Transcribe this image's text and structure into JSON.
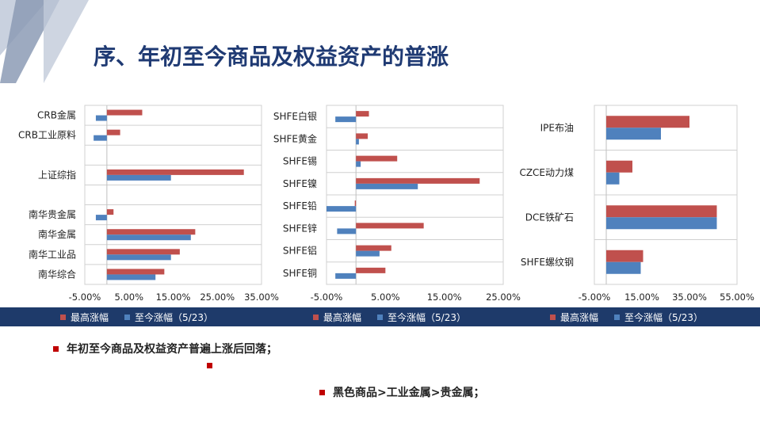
{
  "title": "序、年初至今商品及权益资产的普涨",
  "colors": {
    "max_gain": "#c0504d",
    "ytd": "#4f81bd",
    "band": "#1e3a6a",
    "title": "#1f3a73",
    "bullet": "#c00000"
  },
  "legends": [
    {
      "max_label": "最高涨幅",
      "ytd_label": "至今涨幅（5/23）"
    },
    {
      "max_label": "最高涨幅",
      "ytd_label": "至今涨幅（5/23）"
    },
    {
      "max_label": "最高涨幅",
      "ytd_label": "至今涨幅（5/23）"
    }
  ],
  "bullets": [
    "年初至今商品及权益资产普遍上涨后回落；",
    "",
    "黑色商品>工业金属>贵金属；"
  ],
  "chart_data": [
    {
      "type": "bar",
      "orientation": "horizontal",
      "categories": [
        "CRB金属",
        "CRB工业原料",
        "",
        "上证综指",
        "",
        "南华贵金属",
        "南华金属",
        "南华工业品",
        "南华综合"
      ],
      "series": [
        {
          "name": "最高涨幅",
          "values": [
            8.0,
            3.0,
            null,
            31.0,
            null,
            1.5,
            20.0,
            16.5,
            13.0
          ]
        },
        {
          "name": "至今涨幅（5/23）",
          "values": [
            -2.5,
            -3.0,
            null,
            14.5,
            null,
            -2.5,
            19.0,
            14.5,
            11.0
          ]
        }
      ],
      "xlim": [
        -5,
        35
      ],
      "xticks": [
        "-5.00%",
        "5.00%",
        "15.00%",
        "25.00%",
        "35.00%"
      ]
    },
    {
      "type": "bar",
      "orientation": "horizontal",
      "categories": [
        "SHFE白银",
        "SHFE黄金",
        "SHFE锡",
        "SHFE镍",
        "SHFE铅",
        "SHFE锌",
        "SHFE铝",
        "SHFE铜"
      ],
      "series": [
        {
          "name": "最高涨幅",
          "values": [
            2.2,
            2.0,
            7.0,
            21.0,
            -0.2,
            11.5,
            6.0,
            5.0
          ]
        },
        {
          "name": "至今涨幅（5/23）",
          "values": [
            -3.5,
            0.5,
            0.8,
            10.5,
            -5.0,
            -3.2,
            4.0,
            -3.5
          ]
        }
      ],
      "xlim": [
        -5,
        25
      ],
      "xticks": [
        "-5.00%",
        "5.00%",
        "15.00%",
        "25.00%"
      ]
    },
    {
      "type": "bar",
      "orientation": "horizontal",
      "categories": [
        "IPE布油",
        "CZCE动力煤",
        "DCE铁矿石",
        "SHFE螺纹钢"
      ],
      "series": [
        {
          "name": "最高涨幅",
          "values": [
            35.0,
            11.0,
            46.5,
            15.5
          ]
        },
        {
          "name": "至今涨幅（5/23）",
          "values": [
            23.0,
            5.5,
            46.5,
            14.5
          ]
        }
      ],
      "xlim": [
        -5,
        55
      ],
      "xticks": [
        "-5.00%",
        "15.00%",
        "35.00%",
        "55.00%"
      ]
    }
  ]
}
